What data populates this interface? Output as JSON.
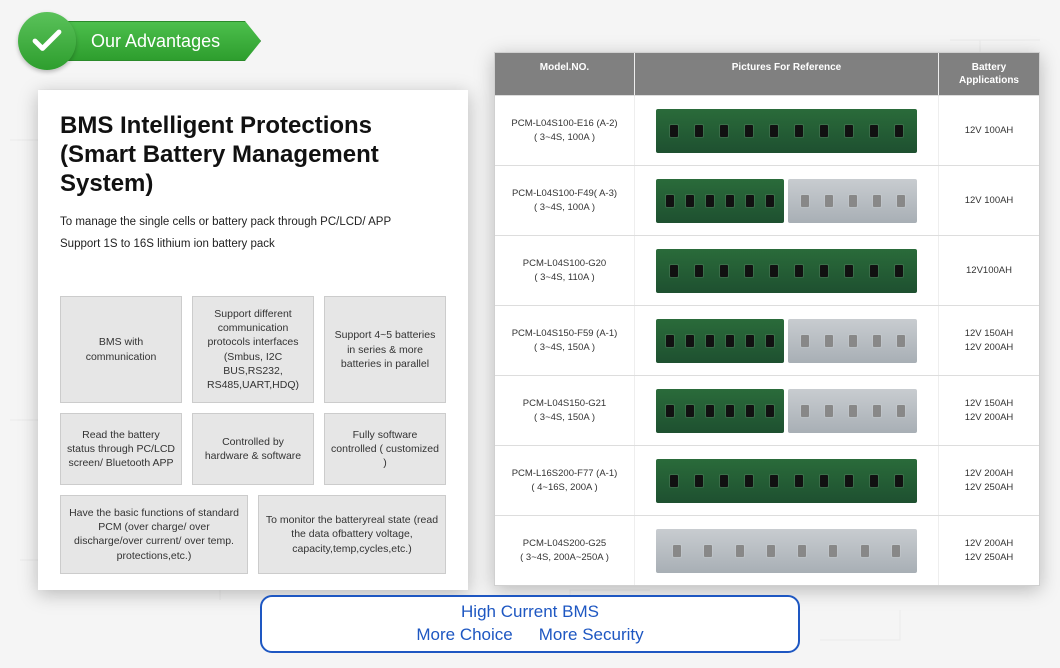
{
  "badge": {
    "label": "Our Advantages"
  },
  "left": {
    "title": "BMS Intelligent Protections (Smart Battery Management System)",
    "desc1": "To manage the single cells or battery pack through PC/LCD/ APP",
    "desc2": "Support 1S to 16S lithium ion battery pack",
    "features": [
      "BMS with communication",
      "Support different communication protocols interfaces (Smbus, I2C BUS,RS232, RS485,UART,HDQ)",
      "Support 4~5 batteries in series & more batteries in parallel",
      "Read the battery status through PC/LCD screen/ Bluetooth APP",
      "Controlled by hardware & software",
      "Fully software controlled ( customized )"
    ],
    "wide": [
      "Have the basic functions of standard PCM (over charge/ over discharge/over current/ over temp. protections,etc.)",
      "To monitor the batteryreal state (read the data ofbattery voltage, capacity,temp,cycles,etc.)"
    ]
  },
  "table": {
    "headers": [
      "Model.NO.",
      "Pictures For Reference",
      "Battery Applications"
    ],
    "rows": [
      {
        "model": "PCM-L04S100-E16 (A-2)",
        "spec": "( 3~4S, 100A )",
        "board": "green",
        "apps": [
          "12V 100AH"
        ]
      },
      {
        "model": "PCM-L04S100-F49( A-3)",
        "spec": "( 3~4S, 100A )",
        "board": "dual",
        "apps": [
          "12V 100AH"
        ]
      },
      {
        "model": "PCM-L04S100-G20",
        "spec": "( 3~4S, 110A )",
        "board": "green",
        "apps": [
          "12V100AH"
        ]
      },
      {
        "model": "PCM-L04S150-F59 (A-1)",
        "spec": "( 3~4S, 150A )",
        "board": "dual",
        "apps": [
          "12V 150AH",
          "12V 200AH"
        ]
      },
      {
        "model": "PCM-L04S150-G21",
        "spec": "( 3~4S, 150A )",
        "board": "dual",
        "apps": [
          "12V 150AH",
          "12V 200AH"
        ]
      },
      {
        "model": "PCM-L16S200-F77 (A-1)",
        "spec": "( 4~16S, 200A )",
        "board": "green",
        "apps": [
          "12V 200AH",
          "12V 250AH"
        ]
      },
      {
        "model": "PCM-L04S200-G25",
        "spec": "( 3~4S, 200A~250A )",
        "board": "silver",
        "apps": [
          "12V 200AH",
          "12V 250AH"
        ]
      }
    ]
  },
  "callout": {
    "line1": "High Current BMS",
    "line2a": "More Choice",
    "line2b": "More Security"
  },
  "colors": {
    "badge_green": "#2e9e2e",
    "accent_blue": "#1e57c2",
    "table_header_bg": "#808080",
    "feature_bg": "#e6e6e6"
  }
}
